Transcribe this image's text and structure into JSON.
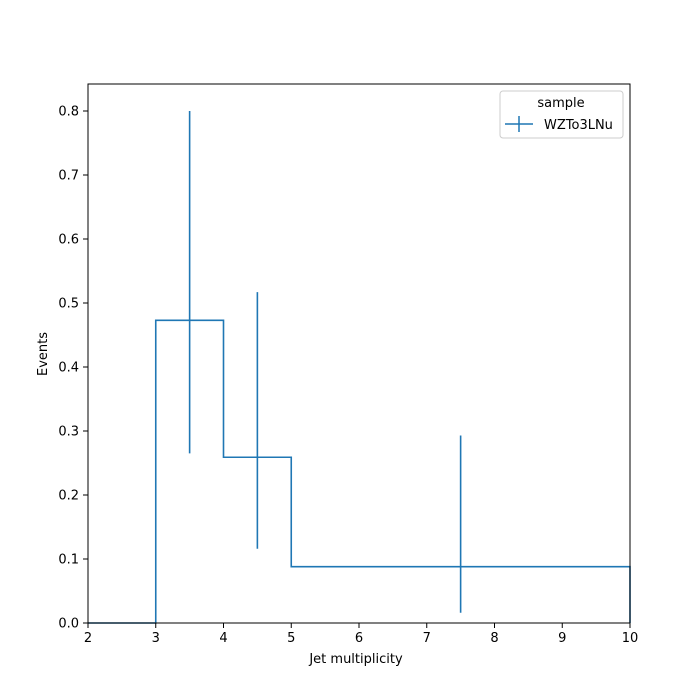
{
  "chart_data": {
    "type": "histogram-step",
    "title": "",
    "xlabel": "Jet multiplicity",
    "ylabel": "Events",
    "xlim": [
      2,
      10
    ],
    "ylim": [
      0,
      0.84
    ],
    "x_ticks": [
      "2",
      "3",
      "4",
      "5",
      "6",
      "7",
      "8",
      "9",
      "10"
    ],
    "y_ticks": [
      "0.0",
      "0.1",
      "0.2",
      "0.3",
      "0.4",
      "0.5",
      "0.6",
      "0.7",
      "0.8"
    ],
    "grid": false,
    "legend": {
      "title": "sample",
      "placement": "top-right",
      "entries": [
        "WZTo3LNu"
      ]
    },
    "series": [
      {
        "name": "WZTo3LNu",
        "color": "#1f77b4",
        "bins": [
          {
            "low": 2,
            "high": 3,
            "value": 0.0,
            "err_low": null,
            "err_high": null
          },
          {
            "low": 3,
            "high": 4,
            "value": 0.473,
            "err_low": 0.265,
            "err_high": 0.8
          },
          {
            "low": 4,
            "high": 5,
            "value": 0.259,
            "err_low": 0.116,
            "err_high": 0.517
          },
          {
            "low": 5,
            "high": 10,
            "value": 0.088,
            "err_low": 0.016,
            "err_high": 0.293
          }
        ]
      }
    ]
  }
}
